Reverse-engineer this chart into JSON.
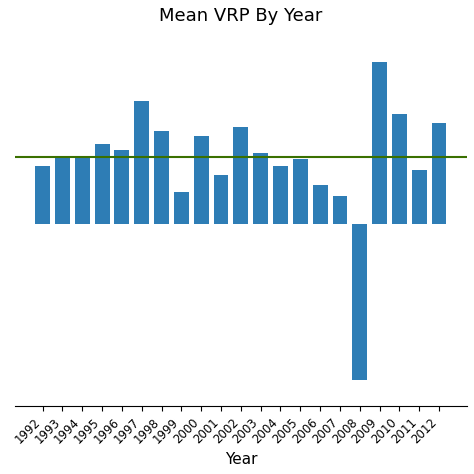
{
  "title": "Mean VRP By Year",
  "xlabel": "Year",
  "ylabel": "",
  "years": [
    1992,
    1993,
    1994,
    1995,
    1996,
    1997,
    1998,
    1999,
    2000,
    2001,
    2002,
    2003,
    2004,
    2005,
    2006,
    2007,
    2008,
    2009,
    2010,
    2011,
    2012
  ],
  "values": [
    4.5,
    5.2,
    5.1,
    6.2,
    5.7,
    9.5,
    7.2,
    2.5,
    6.8,
    3.8,
    7.5,
    5.5,
    4.5,
    5.0,
    3.0,
    2.2,
    -12.0,
    12.5,
    8.5,
    4.2,
    7.8
  ],
  "mean_line": 5.2,
  "bar_color": "#2e7db5",
  "mean_line_color": "#3a7000",
  "background_color": "#ffffff",
  "title_fontsize": 13,
  "label_fontsize": 11,
  "tick_fontsize": 8.5
}
